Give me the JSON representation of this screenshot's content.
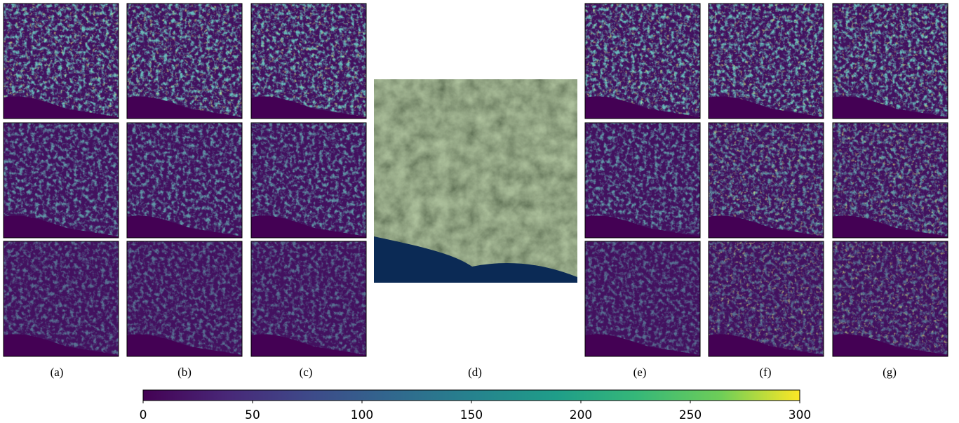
{
  "panels": [
    {
      "label": "(a)"
    },
    {
      "label": "(b)"
    },
    {
      "label": "(c)"
    },
    {
      "label": "(d)"
    },
    {
      "label": "(e)"
    },
    {
      "label": "(f)"
    },
    {
      "label": "(g)"
    }
  ],
  "colorbar": {
    "lim": [
      0,
      300
    ],
    "ticks": [
      0,
      50,
      100,
      150,
      200,
      250,
      300
    ]
  }
}
